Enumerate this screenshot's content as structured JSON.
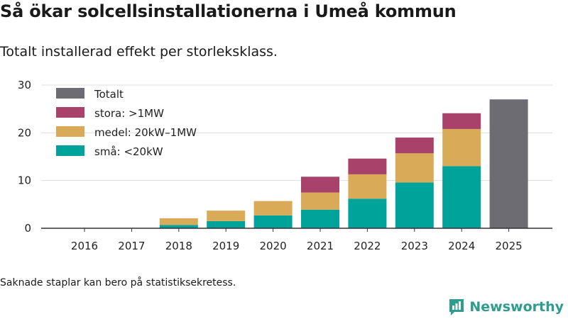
{
  "title": "Så ökar solcellsinstallationerna i Umeå kommun",
  "subtitle": "Totalt installerad effekt per storleksklass.",
  "footnote": "Saknade staplar kan bero på statistiksekretess.",
  "brand": {
    "name": "Newsworthy"
  },
  "colors": {
    "totalt": "#6d6c72",
    "stora": "#a8426a",
    "medel": "#d9ab58",
    "sma": "#00a399",
    "brand": "#2e9c8e",
    "grid": "#dddddd",
    "axis": "#333333"
  },
  "chart_data": {
    "type": "bar",
    "stacked": true,
    "categories": [
      "2016",
      "2017",
      "2018",
      "2019",
      "2020",
      "2021",
      "2022",
      "2023",
      "2024",
      "2025"
    ],
    "ylim": [
      0,
      30
    ],
    "yticks": [
      0,
      10,
      20,
      30
    ],
    "grid": true,
    "legend_position": "top-left",
    "series": [
      {
        "key": "sma",
        "name": "små: <20kW",
        "values": [
          0,
          0,
          0.7,
          1.5,
          2.7,
          3.9,
          6.2,
          9.6,
          13.0,
          null
        ]
      },
      {
        "key": "medel",
        "name": "medel: 20kW–1MW",
        "values": [
          0,
          0,
          1.4,
          2.2,
          3.0,
          3.6,
          5.1,
          6.1,
          7.8,
          null
        ]
      },
      {
        "key": "stora",
        "name": "stora: >1MW",
        "values": [
          0,
          0,
          0,
          0,
          0,
          3.3,
          3.3,
          3.3,
          3.3,
          null
        ]
      },
      {
        "key": "totalt",
        "name": "Totalt",
        "values": [
          null,
          null,
          null,
          null,
          null,
          null,
          null,
          null,
          null,
          27.0
        ]
      }
    ],
    "legend_order": [
      "totalt",
      "stora",
      "medel",
      "sma"
    ]
  }
}
